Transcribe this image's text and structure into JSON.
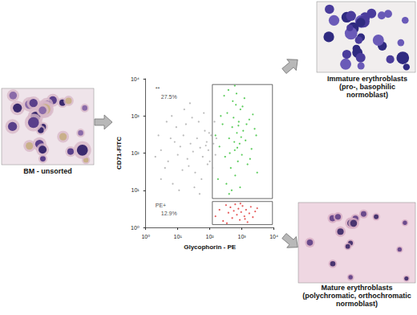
{
  "panels": {
    "unsorted": {
      "label": "BM - unsorted"
    },
    "immature": {
      "label": "Immature erythroblasts",
      "sublabel": "(pro-, basophilic normoblast)"
    },
    "mature": {
      "label": "Mature erythroblasts",
      "sublabel": "(polychromatic, orthochromatic normoblast)"
    }
  },
  "chart_data": {
    "type": "scatter",
    "x_label": "Glycophorin - PE",
    "y_label": "CD71-FITC",
    "log": true,
    "grid": false,
    "xlim": [
      1,
      10000
    ],
    "ylim": [
      1,
      10000
    ],
    "xticks": [
      {
        "value": 1,
        "label": "10⁰"
      },
      {
        "value": 10,
        "label": "10¹"
      },
      {
        "value": 100,
        "label": "10²"
      },
      {
        "value": 1000,
        "label": "10³"
      },
      {
        "value": 10000,
        "label": "10⁴"
      }
    ],
    "yticks": [
      {
        "value": 1,
        "label": "10⁰"
      },
      {
        "value": 10,
        "label": "10¹"
      },
      {
        "value": 100,
        "label": "10²"
      },
      {
        "value": 1000,
        "label": "10³"
      },
      {
        "value": 10000,
        "label": "10⁴"
      }
    ],
    "series": [
      {
        "color": "#a8a8a8",
        "points": [
          [
            2,
            80
          ],
          [
            3,
            120
          ],
          [
            5,
            60
          ],
          [
            8,
            200
          ],
          [
            10,
            90
          ],
          [
            12,
            150
          ],
          [
            15,
            300
          ],
          [
            20,
            70
          ],
          [
            25,
            180
          ],
          [
            30,
            110
          ],
          [
            40,
            250
          ],
          [
            50,
            140
          ],
          [
            60,
            80
          ],
          [
            70,
            400
          ],
          [
            80,
            200
          ],
          [
            90,
            120
          ],
          [
            100,
            60
          ],
          [
            110,
            300
          ],
          [
            4,
            40
          ],
          [
            6,
            250
          ],
          [
            9,
            500
          ],
          [
            14,
            35
          ],
          [
            18,
            600
          ],
          [
            22,
            45
          ],
          [
            28,
            900
          ],
          [
            35,
            30
          ],
          [
            45,
            700
          ],
          [
            55,
            20
          ],
          [
            65,
            1200
          ],
          [
            75,
            160
          ],
          [
            85,
            50
          ],
          [
            95,
            350
          ],
          [
            130,
            180
          ],
          [
            150,
            90
          ],
          [
            3,
            20
          ],
          [
            7,
            15
          ],
          [
            11,
            10
          ],
          [
            16,
            1500
          ],
          [
            24,
            2200
          ],
          [
            33,
            12
          ],
          [
            48,
            8
          ],
          [
            2.5,
            300
          ],
          [
            4.5,
            700
          ],
          [
            6.5,
            1000
          ],
          [
            120,
            40
          ],
          [
            140,
            700
          ],
          [
            160,
            250
          ]
        ]
      },
      {
        "color": "#2fbf2f",
        "points": [
          [
            150,
            300
          ],
          [
            200,
            150
          ],
          [
            250,
            600
          ],
          [
            300,
            80
          ],
          [
            350,
            1200
          ],
          [
            400,
            250
          ],
          [
            450,
            40
          ],
          [
            500,
            500
          ],
          [
            550,
            900
          ],
          [
            600,
            120
          ],
          [
            650,
            2000
          ],
          [
            700,
            350
          ],
          [
            750,
            60
          ],
          [
            800,
            700
          ],
          [
            850,
            180
          ],
          [
            900,
            1500
          ],
          [
            1000,
            90
          ],
          [
            1100,
            400
          ],
          [
            1200,
            3000
          ],
          [
            1300,
            220
          ],
          [
            1500,
            50
          ],
          [
            1700,
            800
          ],
          [
            2000,
            130
          ],
          [
            2500,
            450
          ],
          [
            3000,
            30
          ],
          [
            180,
            20
          ],
          [
            220,
            1000
          ],
          [
            280,
            3500
          ],
          [
            330,
            15
          ],
          [
            380,
            5000
          ],
          [
            420,
            100
          ],
          [
            480,
            10
          ],
          [
            520,
            2500
          ],
          [
            580,
            200
          ],
          [
            620,
            25
          ],
          [
            680,
            4000
          ],
          [
            720,
            140
          ],
          [
            780,
            550
          ],
          [
            880,
            12
          ],
          [
            950,
            270
          ],
          [
            1050,
            1800
          ],
          [
            1400,
            600
          ],
          [
            1800,
            70
          ],
          [
            2200,
            1100
          ],
          [
            2800,
            300
          ],
          [
            400,
            8
          ],
          [
            600,
            6500
          ]
        ]
      },
      {
        "color": "#e03030",
        "points": [
          [
            150,
            2
          ],
          [
            200,
            3
          ],
          [
            260,
            1.5
          ],
          [
            320,
            4
          ],
          [
            380,
            2.5
          ],
          [
            440,
            3.5
          ],
          [
            500,
            1.8
          ],
          [
            560,
            2.8
          ],
          [
            620,
            4.2
          ],
          [
            700,
            2.2
          ],
          [
            780,
            3.2
          ],
          [
            860,
            1.6
          ],
          [
            950,
            2.6
          ],
          [
            1050,
            3.8
          ],
          [
            1200,
            2
          ],
          [
            1350,
            3
          ],
          [
            1500,
            1.4
          ],
          [
            1700,
            2.4
          ],
          [
            1900,
            3.6
          ],
          [
            2200,
            1.9
          ],
          [
            2600,
            2.7
          ],
          [
            3000,
            3.3
          ],
          [
            340,
            1.3
          ],
          [
            900,
            4.4
          ],
          [
            1250,
            1.7
          ]
        ]
      }
    ],
    "gates": [
      {
        "xlim": [
          120,
          9000
        ],
        "ylim": [
          6,
          7000
        ]
      },
      {
        "xlim": [
          120,
          9000
        ],
        "ylim": [
          1.2,
          5
        ]
      }
    ],
    "annotations": [
      {
        "text": "**",
        "x": 2,
        "y": 5500
      },
      {
        "text": "27.5%",
        "x": 3,
        "y": 3200
      },
      {
        "text": "PE+",
        "x": 2,
        "y": 4
      },
      {
        "text": "12.9%",
        "x": 3,
        "y": 2.4
      }
    ]
  }
}
